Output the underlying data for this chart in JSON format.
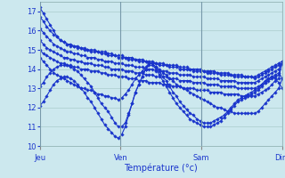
{
  "xlabel": "Température (°c)",
  "background_color": "#cce8ee",
  "grid_color": "#aacccc",
  "line_color": "#1a35cc",
  "marker": "D",
  "markersize": 1.8,
  "linewidth": 0.8,
  "xlim": [
    0,
    72
  ],
  "ylim": [
    10,
    17.5
  ],
  "yticks": [
    10,
    11,
    12,
    13,
    14,
    15,
    16,
    17
  ],
  "day_ticks": [
    0,
    24,
    48,
    72
  ],
  "day_labels": [
    "Jeu",
    "Ven",
    "Sam",
    "Dim"
  ],
  "series": [
    [
      17.2,
      16.9,
      16.6,
      16.3,
      16.0,
      15.7,
      15.5,
      15.4,
      15.3,
      15.3,
      15.2,
      15.2,
      15.1,
      15.1,
      15.0,
      15.0,
      15.0,
      14.9,
      14.9,
      14.9,
      14.8,
      14.8,
      14.7,
      14.7,
      14.7,
      14.6,
      14.6,
      14.6,
      14.5,
      14.5,
      14.5,
      14.4,
      14.4,
      14.4,
      14.3,
      14.3,
      14.3,
      14.2,
      14.2,
      14.2,
      14.2,
      14.1,
      14.1,
      14.1,
      14.0,
      14.0,
      14.0,
      14.0,
      13.9,
      13.9,
      13.9,
      13.9,
      13.8,
      13.8,
      13.8,
      13.8,
      13.7,
      13.7,
      13.7,
      13.7,
      13.6,
      13.6,
      13.6,
      13.6,
      13.7,
      13.8,
      13.9,
      14.0,
      14.1,
      14.2,
      14.3,
      14.4
    ],
    [
      16.7,
      16.5,
      16.2,
      16.0,
      15.8,
      15.7,
      15.5,
      15.4,
      15.3,
      15.2,
      15.2,
      15.1,
      15.1,
      15.0,
      15.0,
      14.9,
      14.9,
      14.9,
      14.8,
      14.8,
      14.7,
      14.7,
      14.7,
      14.6,
      14.6,
      14.6,
      14.5,
      14.5,
      14.5,
      14.4,
      14.4,
      14.4,
      14.3,
      14.3,
      14.3,
      14.2,
      14.2,
      14.2,
      14.1,
      14.1,
      14.1,
      14.0,
      14.0,
      14.0,
      14.0,
      13.9,
      13.9,
      13.9,
      13.9,
      13.8,
      13.8,
      13.8,
      13.8,
      13.7,
      13.7,
      13.7,
      13.7,
      13.6,
      13.6,
      13.6,
      13.6,
      13.6,
      13.6,
      13.5,
      13.6,
      13.7,
      13.8,
      13.9,
      14.0,
      14.1,
      14.2,
      14.3
    ],
    [
      16.1,
      15.9,
      15.7,
      15.5,
      15.3,
      15.2,
      15.1,
      15.0,
      14.9,
      14.9,
      14.8,
      14.8,
      14.7,
      14.7,
      14.6,
      14.6,
      14.6,
      14.5,
      14.5,
      14.4,
      14.4,
      14.4,
      14.3,
      14.3,
      14.3,
      14.2,
      14.2,
      14.2,
      14.1,
      14.1,
      14.1,
      14.0,
      14.0,
      14.0,
      13.9,
      13.9,
      13.9,
      13.9,
      13.8,
      13.8,
      13.8,
      13.7,
      13.7,
      13.7,
      13.7,
      13.6,
      13.6,
      13.6,
      13.6,
      13.5,
      13.5,
      13.5,
      13.5,
      13.4,
      13.4,
      13.4,
      13.4,
      13.4,
      13.3,
      13.3,
      13.3,
      13.3,
      13.3,
      13.3,
      13.4,
      13.5,
      13.6,
      13.7,
      13.8,
      13.9,
      14.0,
      14.3
    ],
    [
      15.5,
      15.3,
      15.1,
      15.0,
      14.9,
      14.8,
      14.7,
      14.6,
      14.6,
      14.5,
      14.5,
      14.4,
      14.4,
      14.3,
      14.3,
      14.3,
      14.2,
      14.2,
      14.2,
      14.1,
      14.1,
      14.0,
      14.0,
      14.0,
      14.0,
      13.9,
      13.9,
      13.9,
      13.8,
      13.8,
      13.8,
      13.7,
      13.7,
      13.7,
      13.6,
      13.6,
      13.6,
      13.6,
      13.5,
      13.5,
      13.5,
      13.4,
      13.4,
      13.4,
      13.4,
      13.3,
      13.3,
      13.3,
      13.3,
      13.2,
      13.2,
      13.2,
      13.2,
      13.1,
      13.1,
      13.1,
      13.1,
      13.1,
      13.0,
      13.0,
      13.0,
      13.0,
      13.0,
      13.0,
      13.1,
      13.2,
      13.3,
      13.4,
      13.5,
      13.6,
      13.7,
      14.3
    ],
    [
      15.0,
      14.8,
      14.7,
      14.6,
      14.5,
      14.4,
      14.3,
      14.3,
      14.2,
      14.2,
      14.1,
      14.1,
      14.0,
      14.0,
      14.0,
      13.9,
      13.9,
      13.9,
      13.8,
      13.8,
      13.7,
      13.7,
      13.7,
      13.6,
      13.6,
      13.6,
      13.5,
      13.5,
      13.5,
      13.4,
      13.4,
      13.4,
      13.3,
      13.3,
      13.3,
      13.3,
      13.2,
      13.2,
      13.2,
      13.1,
      13.1,
      13.1,
      13.0,
      13.0,
      13.0,
      13.0,
      12.9,
      12.9,
      12.9,
      12.9,
      12.8,
      12.8,
      12.8,
      12.8,
      12.7,
      12.7,
      12.7,
      12.7,
      12.7,
      12.6,
      12.6,
      12.6,
      12.6,
      12.6,
      12.7,
      12.8,
      12.9,
      13.0,
      13.2,
      13.4,
      13.5,
      14.4
    ],
    [
      13.1,
      13.3,
      13.6,
      13.8,
      14.0,
      14.1,
      14.2,
      14.2,
      14.2,
      14.1,
      14.0,
      13.9,
      13.7,
      13.5,
      13.3,
      13.1,
      12.8,
      12.5,
      12.2,
      12.0,
      11.8,
      11.5,
      11.2,
      11.0,
      11.0,
      11.2,
      11.7,
      12.2,
      12.8,
      13.2,
      13.6,
      14.0,
      14.3,
      14.3,
      14.1,
      13.9,
      13.6,
      13.4,
      13.1,
      12.8,
      12.6,
      12.3,
      12.1,
      11.9,
      11.7,
      11.6,
      11.4,
      11.3,
      11.2,
      11.2,
      11.2,
      11.3,
      11.4,
      11.5,
      11.6,
      11.8,
      12.0,
      12.2,
      12.4,
      12.5,
      12.6,
      12.7,
      12.8,
      12.9,
      13.0,
      13.2,
      13.4,
      13.5,
      13.6,
      13.7,
      13.8,
      13.5
    ],
    [
      12.1,
      12.3,
      12.6,
      12.9,
      13.2,
      13.4,
      13.5,
      13.6,
      13.6,
      13.5,
      13.4,
      13.2,
      13.0,
      12.8,
      12.5,
      12.3,
      12.0,
      11.7,
      11.4,
      11.1,
      10.9,
      10.7,
      10.5,
      10.4,
      10.6,
      11.0,
      11.6,
      12.2,
      12.8,
      13.2,
      13.6,
      14.0,
      14.2,
      14.2,
      14.0,
      13.7,
      13.4,
      13.1,
      12.8,
      12.5,
      12.2,
      12.0,
      11.8,
      11.6,
      11.4,
      11.3,
      11.2,
      11.1,
      11.0,
      11.0,
      11.0,
      11.1,
      11.2,
      11.3,
      11.5,
      11.7,
      11.9,
      12.1,
      12.3,
      12.4,
      12.5,
      12.6,
      12.7,
      12.8,
      12.9,
      13.1,
      13.3,
      13.5,
      13.6,
      13.5,
      13.3,
      13.0
    ],
    [
      14.6,
      14.4,
      14.2,
      14.0,
      13.8,
      13.7,
      13.6,
      13.5,
      13.4,
      13.3,
      13.2,
      13.1,
      13.0,
      13.0,
      12.9,
      12.9,
      12.8,
      12.7,
      12.7,
      12.6,
      12.6,
      12.5,
      12.5,
      12.4,
      12.5,
      12.7,
      12.9,
      13.2,
      13.5,
      13.7,
      13.9,
      14.1,
      14.3,
      14.3,
      14.1,
      14.0,
      13.8,
      13.7,
      13.5,
      13.4,
      13.2,
      13.1,
      13.0,
      12.9,
      12.8,
      12.7,
      12.6,
      12.5,
      12.4,
      12.3,
      12.2,
      12.1,
      12.0,
      12.0,
      11.9,
      11.8,
      11.8,
      11.7,
      11.7,
      11.7,
      11.7,
      11.7,
      11.7,
      11.7,
      11.8,
      12.0,
      12.2,
      12.4,
      12.6,
      12.8,
      13.0,
      13.5
    ]
  ]
}
